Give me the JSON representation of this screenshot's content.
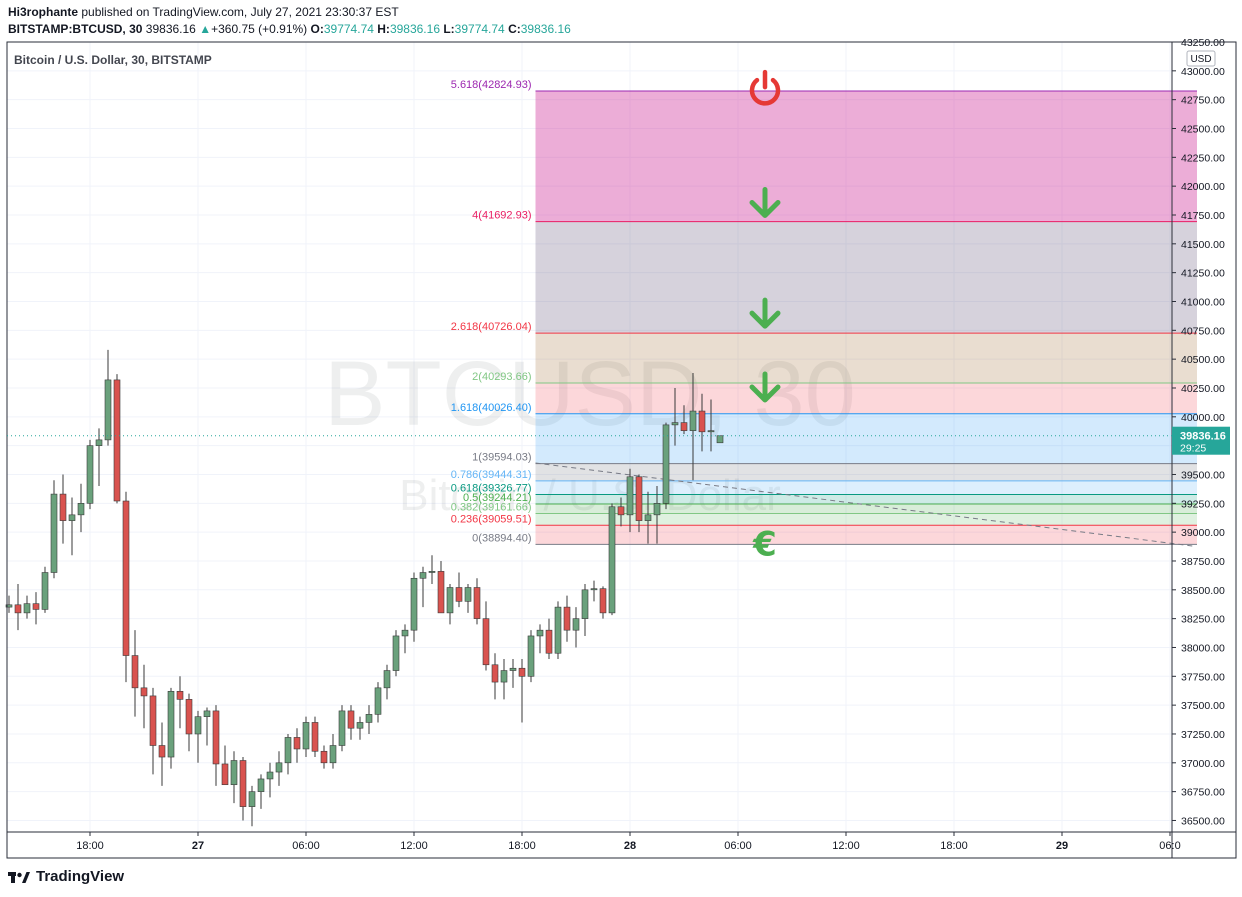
{
  "header": {
    "author": "Hi3rophante",
    "published_text": "published on TradingView.com, July 27, 2021 23:30:37 EST",
    "symbol": "BITSTAMP:BTCUSD, 30",
    "last_price": "39836.16",
    "change_arrow": "▲",
    "change": "+360.75 (+0.91%)",
    "o_label": "O:",
    "o_value": "39774.74",
    "h_label": "H:",
    "h_value": "39836.16",
    "l_label": "L:",
    "l_value": "39774.74",
    "c_label": "C:",
    "c_value": "39836.16"
  },
  "legend_title": "Bitcoin / U.S. Dollar, 30, BITSTAMP",
  "watermark": {
    "line1": "BTCUSD, 30",
    "line2": "Bitcoin / U.S. Dollar"
  },
  "footer": {
    "brand": "TradingView"
  },
  "price_axis": {
    "currency": "USD",
    "last_price_label": "39836.16",
    "countdown": "29:25"
  },
  "colors": {
    "up": "#26a69a",
    "up_body": "#6aa17c",
    "down": "#d9534f",
    "grid": "#f0f3fa",
    "icon_green": "#4caf50",
    "icon_red": "#e53935"
  },
  "chart_data": {
    "type": "candlestick",
    "ylim": [
      36400,
      43250
    ],
    "y_ticks": [
      36500,
      36750,
      37000,
      37250,
      37500,
      37750,
      38000,
      38250,
      38500,
      38750,
      39000,
      39250,
      39500,
      39750,
      40000,
      40250,
      40500,
      40750,
      41000,
      41250,
      41500,
      41750,
      42000,
      42250,
      42500,
      42750,
      43000,
      43250
    ],
    "y_tick_labels": [
      "36500.00",
      "36750.00",
      "37000.00",
      "37250.00",
      "37500.00",
      "37750.00",
      "38000.00",
      "38250.00",
      "38500.00",
      "38750.00",
      "39000.00",
      "39250.00",
      "39500.00",
      "39750.00",
      "40000.00",
      "40250.00",
      "40500.00",
      "40750.00",
      "41000.00",
      "41250.00",
      "41500.00",
      "41750.00",
      "42000.00",
      "42250.00",
      "42500.00",
      "42750.00",
      "43000.00",
      "43250.00"
    ],
    "x_ticks": [
      {
        "bar": 9,
        "label": "18:00"
      },
      {
        "bar": 21,
        "label": "27"
      },
      {
        "bar": 33,
        "label": "06:00"
      },
      {
        "bar": 45,
        "label": "12:00"
      },
      {
        "bar": 57,
        "label": "18:00"
      },
      {
        "bar": 69,
        "label": "28"
      },
      {
        "bar": 81,
        "label": "06:00"
      },
      {
        "bar": 93,
        "label": "12:00"
      },
      {
        "bar": 105,
        "label": "18:00"
      },
      {
        "bar": 117,
        "label": "29"
      },
      {
        "bar": 129,
        "label": "06:0"
      }
    ],
    "candles": [
      [
        38350,
        38450,
        38300,
        38370
      ],
      [
        38370,
        38550,
        38150,
        38300
      ],
      [
        38300,
        38450,
        38250,
        38380
      ],
      [
        38380,
        38480,
        38200,
        38330
      ],
      [
        38330,
        38700,
        38300,
        38650
      ],
      [
        38650,
        39450,
        38600,
        39330
      ],
      [
        39330,
        39500,
        38900,
        39100
      ],
      [
        39100,
        39300,
        38800,
        39150
      ],
      [
        39150,
        39420,
        39000,
        39250
      ],
      [
        39250,
        39800,
        39200,
        39750
      ],
      [
        39750,
        39900,
        39400,
        39800
      ],
      [
        39800,
        40580,
        39750,
        40320
      ],
      [
        40320,
        40370,
        39250,
        39270
      ],
      [
        39270,
        39350,
        37700,
        37930
      ],
      [
        37930,
        38150,
        37400,
        37650
      ],
      [
        37650,
        37850,
        37300,
        37580
      ],
      [
        37580,
        37650,
        36900,
        37150
      ],
      [
        37150,
        37350,
        36800,
        37050
      ],
      [
        37050,
        37650,
        36950,
        37620
      ],
      [
        37620,
        37750,
        37300,
        37550
      ],
      [
        37550,
        37600,
        37100,
        37250
      ],
      [
        37250,
        37450,
        37000,
        37400
      ],
      [
        37400,
        37480,
        37150,
        37450
      ],
      [
        37450,
        37500,
        36800,
        36990
      ],
      [
        36990,
        37150,
        36850,
        36810
      ],
      [
        36810,
        37100,
        36650,
        37020
      ],
      [
        37020,
        37050,
        36500,
        36620
      ],
      [
        36620,
        36800,
        36450,
        36750
      ],
      [
        36750,
        36900,
        36600,
        36860
      ],
      [
        36860,
        37000,
        36700,
        36920
      ],
      [
        36920,
        37100,
        36800,
        37000
      ],
      [
        37000,
        37250,
        36900,
        37220
      ],
      [
        37220,
        37300,
        37000,
        37120
      ],
      [
        37120,
        37400,
        37050,
        37350
      ],
      [
        37350,
        37400,
        37050,
        37100
      ],
      [
        37100,
        37150,
        36950,
        37000
      ],
      [
        37000,
        37250,
        36950,
        37150
      ],
      [
        37150,
        37500,
        37100,
        37450
      ],
      [
        37450,
        37500,
        37200,
        37300
      ],
      [
        37300,
        37400,
        37200,
        37350
      ],
      [
        37350,
        37500,
        37250,
        37420
      ],
      [
        37420,
        37700,
        37350,
        37650
      ],
      [
        37650,
        37850,
        37550,
        37800
      ],
      [
        37800,
        38150,
        37750,
        38100
      ],
      [
        38100,
        38200,
        37950,
        38150
      ],
      [
        38150,
        38650,
        38050,
        38600
      ],
      [
        38600,
        38700,
        38350,
        38650
      ],
      [
        38650,
        38800,
        38550,
        38660
      ],
      [
        38660,
        38750,
        38300,
        38300
      ],
      [
        38300,
        38550,
        38200,
        38520
      ],
      [
        38520,
        38650,
        38350,
        38400
      ],
      [
        38400,
        38550,
        38300,
        38520
      ],
      [
        38520,
        38600,
        38200,
        38250
      ],
      [
        38250,
        38400,
        37800,
        37850
      ],
      [
        37850,
        37950,
        37550,
        37700
      ],
      [
        37700,
        37900,
        37550,
        37800
      ],
      [
        37800,
        37900,
        37650,
        37820
      ],
      [
        37820,
        37900,
        37350,
        37750
      ],
      [
        37750,
        38150,
        37700,
        38100
      ],
      [
        38100,
        38200,
        37950,
        38150
      ],
      [
        38150,
        38250,
        37900,
        37950
      ],
      [
        37950,
        38400,
        37900,
        38350
      ],
      [
        38350,
        38450,
        38050,
        38150
      ],
      [
        38150,
        38350,
        38000,
        38250
      ],
      [
        38250,
        38550,
        38100,
        38500
      ],
      [
        38500,
        38580,
        38400,
        38510
      ],
      [
        38510,
        38530,
        38250,
        38300
      ],
      [
        38300,
        39250,
        38280,
        39220
      ],
      [
        39220,
        39300,
        39050,
        39150
      ],
      [
        39150,
        39550,
        39000,
        39480
      ],
      [
        39480,
        39500,
        39000,
        39100
      ],
      [
        39100,
        39350,
        38900,
        39150
      ],
      [
        39150,
        39400,
        38900,
        39250
      ],
      [
        39250,
        39950,
        39200,
        39930
      ],
      [
        39930,
        40250,
        39750,
        39950
      ],
      [
        39950,
        40100,
        39850,
        39880
      ],
      [
        39880,
        40380,
        39450,
        40050
      ],
      [
        40050,
        40200,
        39700,
        39870
      ],
      [
        39870,
        40150,
        39700,
        39880
      ],
      [
        39774.74,
        39836.16,
        39774.74,
        39836.16
      ]
    ],
    "fib_levels": [
      {
        "ratio": "0",
        "price": 38894.4,
        "label": "0(38894.40)",
        "color": "#787b86",
        "fill": "rgba(242,54,69,0.20)"
      },
      {
        "ratio": "0.236",
        "price": 39059.51,
        "label": "0.236(39059.51)",
        "color": "#f23645",
        "fill": "rgba(129,199,132,0.25)"
      },
      {
        "ratio": "0.382",
        "price": 39161.66,
        "label": "0.382(39161.66)",
        "color": "#81c784",
        "fill": "rgba(76,175,80,0.22)"
      },
      {
        "ratio": "0.5",
        "price": 39244.21,
        "label": "0.5(39244.21)",
        "color": "#4caf50",
        "fill": "rgba(8,153,129,0.20)"
      },
      {
        "ratio": "0.618",
        "price": 39326.77,
        "label": "0.618(39326.77)",
        "color": "#089981",
        "fill": "rgba(100,181,246,0.22)"
      },
      {
        "ratio": "0.786",
        "price": 39444.31,
        "label": "0.786(39444.31)",
        "color": "#64b5f6",
        "fill": "rgba(120,123,134,0.22)"
      },
      {
        "ratio": "1",
        "price": 39594.03,
        "label": "1(39594.03)",
        "color": "#787b86",
        "fill": "rgba(33,150,243,0.20)"
      },
      {
        "ratio": "1.618",
        "price": 40026.4,
        "label": "1.618(40026.40)",
        "color": "#2196f3",
        "fill": "rgba(242,54,69,0.20)"
      },
      {
        "ratio": "2",
        "price": 40293.66,
        "label": "2(40293.66)",
        "color": "#81c784",
        "fill": "rgba(156,100,40,0.22)"
      },
      {
        "ratio": "2.618",
        "price": 40726.04,
        "label": "2.618(40726.04)",
        "color": "#f23645",
        "fill": "rgba(106,92,130,0.28)"
      },
      {
        "ratio": "4",
        "price": 41692.93,
        "label": "4(41692.93)",
        "color": "#e91e63",
        "fill": "rgba(206,40,150,0.38)"
      },
      {
        "ratio": "5.618",
        "price": 42824.93,
        "label": "5.618(42824.93)",
        "color": "#9c27b0",
        "fill": ""
      }
    ],
    "fib_x_range": [
      58.5,
      132
    ],
    "trend_line": {
      "x1": 58.5,
      "y1": 39600,
      "x2": 131.5,
      "y2": 38880
    },
    "icons": [
      {
        "name": "power-icon",
        "bar": 84,
        "price": 42850,
        "color": "#e53935"
      },
      {
        "name": "arrow-down-icon",
        "bar": 84,
        "price": 41850,
        "color": "#4caf50"
      },
      {
        "name": "arrow-down-icon",
        "bar": 84,
        "price": 40890,
        "color": "#4caf50"
      },
      {
        "name": "arrow-down-icon",
        "bar": 84,
        "price": 40250,
        "color": "#4caf50"
      },
      {
        "name": "euro-icon",
        "bar": 84,
        "price": 38900,
        "color": "#4caf50"
      }
    ]
  }
}
